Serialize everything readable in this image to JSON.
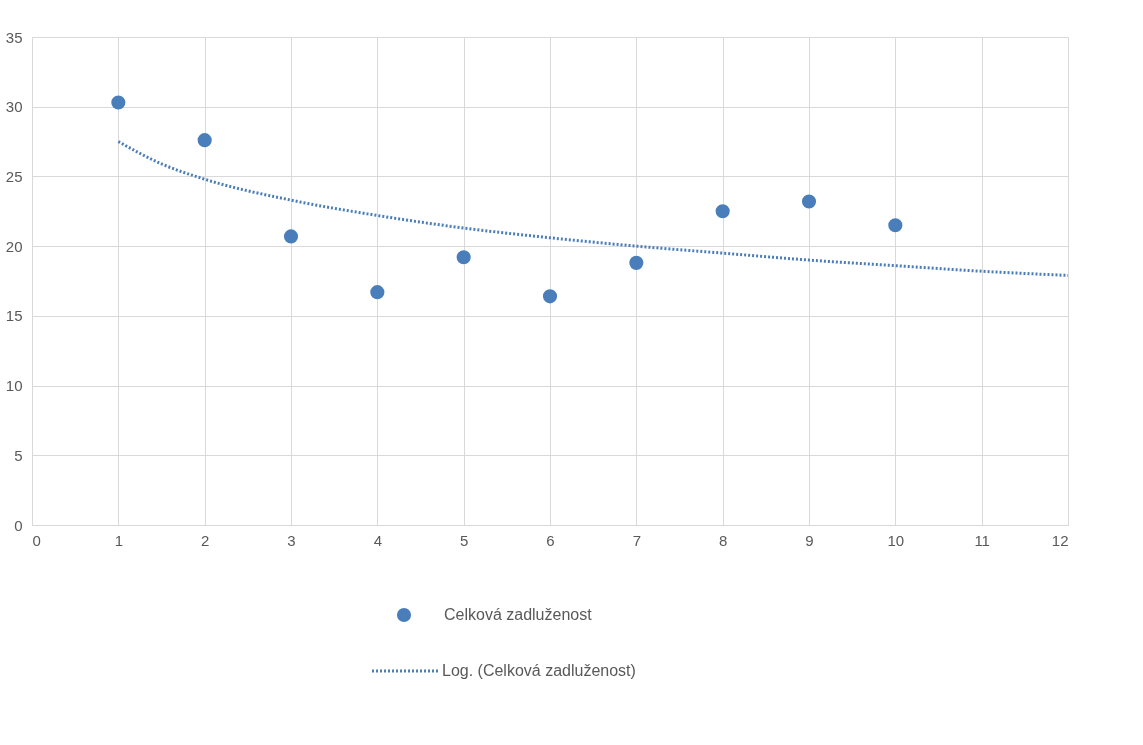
{
  "chart_data": {
    "type": "scatter",
    "xlim": [
      0,
      12
    ],
    "xticks": [
      0,
      1,
      2,
      3,
      4,
      5,
      6,
      7,
      8,
      9,
      10,
      11,
      12
    ],
    "ylim": [
      0,
      35
    ],
    "yticks": [
      0,
      5,
      10,
      15,
      20,
      25,
      30,
      35
    ],
    "grid": true,
    "legend": "bottom",
    "series": [
      {
        "name": "Celková zadluženost",
        "marker": "circle",
        "color": "#4a7ebb",
        "x": [
          1,
          2,
          3,
          4,
          5,
          6,
          7,
          8,
          9,
          10
        ],
        "values": [
          30.3,
          27.6,
          20.7,
          16.7,
          19.2,
          16.4,
          18.8,
          22.5,
          23.2,
          21.5
        ]
      },
      {
        "name": "Log. (Celková zadluženost)",
        "type": "line",
        "line_style": "dotted",
        "marker": "none",
        "color": "#4a7ebb",
        "x": [
          1,
          1.5,
          2,
          3,
          4,
          5,
          6,
          7,
          8,
          9,
          10,
          11,
          12
        ],
        "values": [
          27.5,
          25.9,
          24.8,
          23.3,
          22.2,
          21.3,
          20.6,
          20.0,
          19.5,
          19.0,
          18.6,
          18.2,
          17.9
        ]
      }
    ]
  }
}
